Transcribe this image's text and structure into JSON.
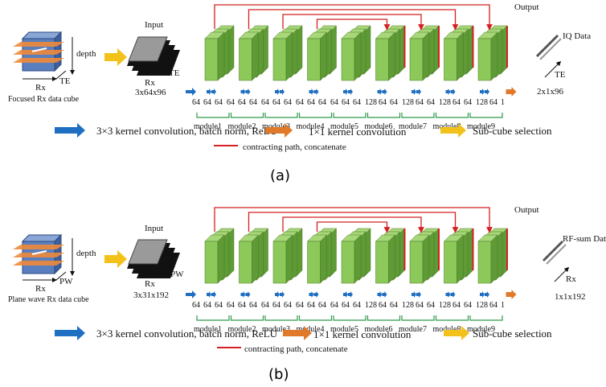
{
  "panel_a": {
    "caption": "(a)",
    "cube_label": "Focused Rx data cube",
    "cube_depth": "depth",
    "cube_rx": "Rx",
    "cube_axis2": "TE",
    "input_title": "Input",
    "input_rx": "Rx",
    "input_axis2": "TE",
    "input_dims": "3x64x96",
    "output_title": "Output",
    "output_name": "IQ Data",
    "output_axis": "TE",
    "output_dims": "2x1x96",
    "channels": [
      "64",
      "64",
      "64",
      "64",
      "64",
      "64",
      "64",
      "64",
      "64",
      "64",
      "64",
      "64",
      "64",
      "64",
      "64",
      "128",
      "64",
      "64",
      "128",
      "64",
      "64",
      "128",
      "64",
      "64",
      "128",
      "64",
      "1"
    ],
    "modules": [
      "module1",
      "module2",
      "module3",
      "module4",
      "module5",
      "module6",
      "module7",
      "module8",
      "module9"
    ],
    "legend": {
      "conv3": "3×3 kernel convolution, batch norm, ReLU",
      "conv1": "1×1 kernel convolution",
      "subcube": "Sub-cube selection",
      "skip": "contracting path, concatenate"
    }
  },
  "panel_b": {
    "caption": "(b)",
    "cube_label": "Plane wave Rx data cube",
    "cube_depth": "depth",
    "cube_rx": "Rx",
    "cube_axis2": "PW",
    "input_title": "Input",
    "input_rx": "Rx",
    "input_axis2": "PW",
    "input_dims": "3x31x192",
    "output_title": "Output",
    "output_name": "RF-sum Data",
    "output_axis": "Rx",
    "output_dims": "1x1x192",
    "channels": [
      "64",
      "64",
      "64",
      "64",
      "64",
      "64",
      "64",
      "64",
      "64",
      "64",
      "64",
      "64",
      "64",
      "64",
      "64",
      "128",
      "64",
      "64",
      "128",
      "64",
      "64",
      "128",
      "64",
      "64",
      "128",
      "64",
      "1"
    ],
    "modules": [
      "module1",
      "module2",
      "module3",
      "module4",
      "module5",
      "module6",
      "module7",
      "module8",
      "module9"
    ],
    "legend": {
      "conv3": "3×3 kernel convolution, batch norm, ReLU",
      "conv1": "1×1 kernel convolution",
      "subcube": "Sub-cube selection",
      "skip": "contracting path, concatenate"
    }
  },
  "colors": {
    "block_green": "#8cc95a",
    "block_dark": "#5e9a35",
    "skip_red": "#d42020",
    "conv3_blue": "#1f6fc2",
    "conv1_orange": "#e07a2a",
    "subcube_yellow": "#f3c21a",
    "bracket_green": "#2e9a4a",
    "cube_blue": "#5a7fbf",
    "cube_orange": "#ef8a3a"
  }
}
